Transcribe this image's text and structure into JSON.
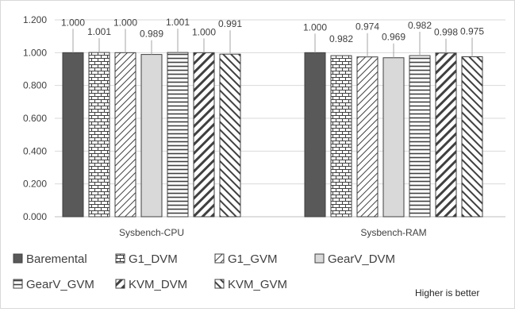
{
  "chart_data": {
    "type": "bar",
    "categories": [
      "Sysbench-CPU",
      "Sysbench-RAM"
    ],
    "ylim": [
      0,
      1.2
    ],
    "yticks": [
      "0.000",
      "0.200",
      "0.400",
      "0.600",
      "0.800",
      "1.000",
      "1.200"
    ],
    "grid": true,
    "legend_position": "bottom",
    "series": [
      {
        "name": "Baremental",
        "values": [
          1.0,
          1.0
        ],
        "labels": [
          "1.000",
          "1.000"
        ],
        "pattern": "solid-dark"
      },
      {
        "name": "G1_DVM",
        "values": [
          1.001,
          0.982
        ],
        "labels": [
          "1.001",
          "0.982"
        ],
        "pattern": "brick"
      },
      {
        "name": "G1_GVM",
        "values": [
          1.0,
          0.974
        ],
        "labels": [
          "1.000",
          "0.974"
        ],
        "pattern": "diag-up"
      },
      {
        "name": "GearV_DVM",
        "values": [
          0.989,
          0.969
        ],
        "labels": [
          "0.989",
          "0.969"
        ],
        "pattern": "solid-light"
      },
      {
        "name": "GearV_GVM",
        "values": [
          1.001,
          0.982
        ],
        "labels": [
          "1.001",
          "0.982"
        ],
        "pattern": "horizontal"
      },
      {
        "name": "KVM_DVM",
        "values": [
          1.0,
          0.998
        ],
        "labels": [
          "1.000",
          "0.998"
        ],
        "pattern": "diag-wide"
      },
      {
        "name": "KVM_GVM",
        "values": [
          0.991,
          0.975
        ],
        "labels": [
          "0.991",
          "0.975"
        ],
        "pattern": "diag-down"
      }
    ],
    "annotations": [
      "Higher is better"
    ]
  },
  "colors": {
    "border": "#d9d9d9",
    "grid": "#d9d9d9",
    "dark_fill": "#595959",
    "light_fill": "#d9d9d9",
    "outline": "#404040"
  }
}
